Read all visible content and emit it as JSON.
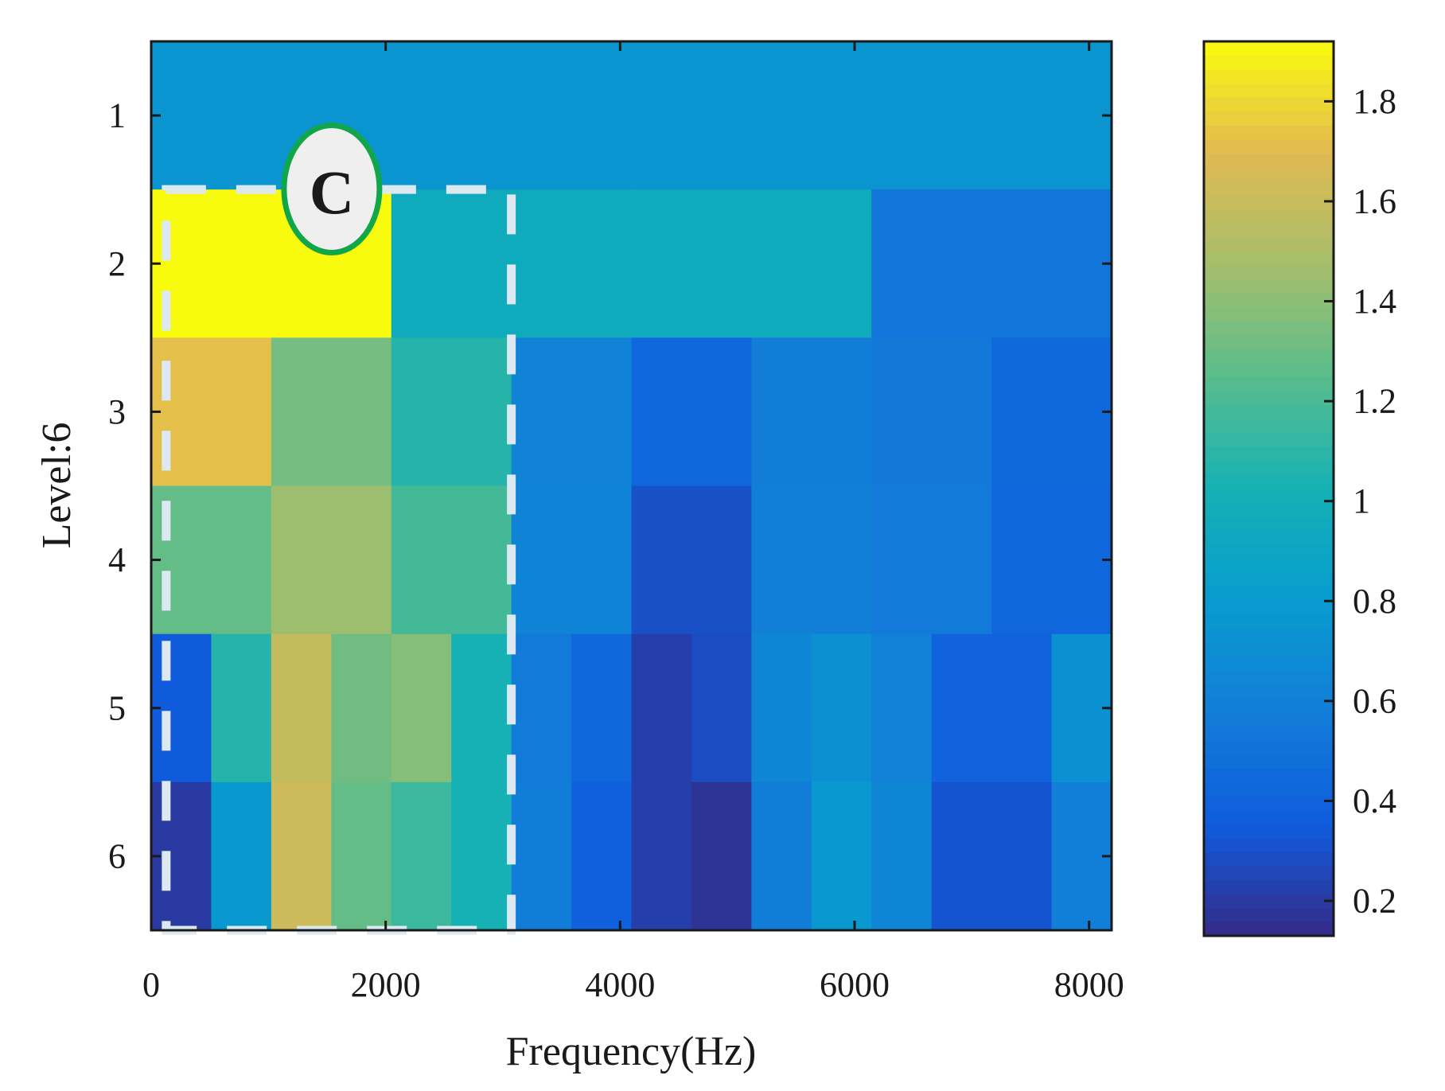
{
  "chart_data": {
    "type": "heatmap",
    "title": "",
    "xlabel": "Frequency(Hz)",
    "ylabel": "Level:6",
    "xlim": [
      0,
      8192
    ],
    "ylim": [
      0.5,
      6.5
    ],
    "x_ticks": [
      0,
      2000,
      4000,
      6000,
      8000
    ],
    "y_ticks": [
      1,
      2,
      3,
      4,
      5,
      6
    ],
    "colorbar": {
      "limits": [
        0.13,
        1.92
      ],
      "ticks": [
        0.2,
        0.4,
        0.6,
        0.8,
        1,
        1.2,
        1.4,
        1.6,
        1.8
      ],
      "colormap": "parula"
    },
    "levels": [
      {
        "level": 1,
        "bands": 1,
        "values": [
          0.75
        ]
      },
      {
        "level": 2,
        "bands": 4,
        "values": [
          1.92,
          0.95,
          0.95,
          0.52
        ]
      },
      {
        "level": 3,
        "bands": 8,
        "values": [
          1.72,
          1.33,
          1.08,
          0.62,
          0.43,
          0.58,
          0.55,
          0.44
        ]
      },
      {
        "level": 4,
        "bands": 8,
        "values": [
          1.28,
          1.45,
          1.18,
          0.63,
          0.3,
          0.59,
          0.56,
          0.43
        ]
      },
      {
        "level": 5,
        "bands": 16,
        "values": [
          0.35,
          1.08,
          1.58,
          1.32,
          1.38,
          1.02,
          0.56,
          0.43,
          0.22,
          0.28,
          0.64,
          0.72,
          0.6,
          0.4,
          0.4,
          0.72
        ]
      },
      {
        "level": 6,
        "bands": 16,
        "values": [
          0.2,
          0.78,
          1.62,
          1.28,
          1.15,
          1.02,
          0.58,
          0.38,
          0.22,
          0.17,
          0.58,
          0.77,
          0.64,
          0.32,
          0.32,
          0.59
        ]
      }
    ],
    "annotations": [
      {
        "type": "dashed-rectangle",
        "x_range": [
          128,
          3072
        ],
        "level_range": [
          1.5,
          6.5
        ],
        "color": "#dde9f2"
      },
      {
        "type": "circle-label",
        "text": "C",
        "x": 1540,
        "level": 1.55,
        "border_color": "#12a64a",
        "fill_color": "#efefef"
      }
    ]
  },
  "colors": {
    "axis": "#1a1a1a",
    "highlight_box": "#dde9f2",
    "callout_border": "#12a64a",
    "callout_fill": "#efefef"
  }
}
